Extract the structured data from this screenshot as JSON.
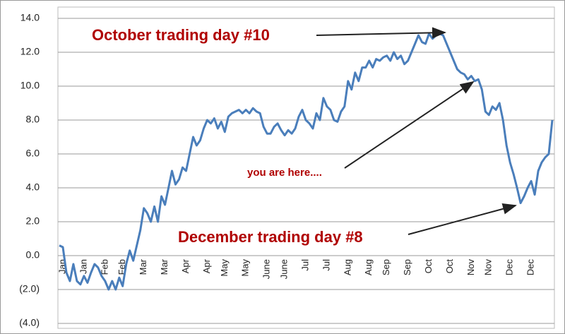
{
  "chart_data": {
    "type": "line",
    "categories": [
      null,
      "Jan",
      null,
      null,
      null,
      null,
      null,
      "Jan",
      null,
      null,
      null,
      null,
      null,
      "Feb",
      null,
      null,
      null,
      null,
      "Feb",
      null,
      null,
      null,
      null,
      null,
      "Mar",
      null,
      null,
      null,
      null,
      null,
      "Mar",
      null,
      null,
      null,
      null,
      null,
      "Apr",
      null,
      null,
      null,
      null,
      null,
      "Apr",
      null,
      null,
      null,
      null,
      "May",
      null,
      null,
      null,
      null,
      null,
      "May",
      null,
      null,
      null,
      null,
      null,
      "June",
      null,
      null,
      null,
      null,
      "June",
      null,
      null,
      null,
      null,
      null,
      "Jul",
      null,
      null,
      null,
      null,
      null,
      "Jul",
      null,
      null,
      null,
      null,
      null,
      "Aug",
      null,
      null,
      null,
      null,
      null,
      "Aug",
      null,
      null,
      null,
      null,
      "Sep",
      null,
      null,
      null,
      null,
      null,
      "Sep",
      null,
      null,
      null,
      null,
      null,
      "Oct",
      null,
      null,
      null,
      null,
      null,
      "Oct",
      null,
      null,
      null,
      null,
      null,
      "Nov",
      null,
      null,
      null,
      null,
      "Nov",
      null,
      null,
      null,
      null,
      null,
      "Dec",
      null,
      null,
      null,
      null,
      null,
      "Dec",
      null,
      null,
      null,
      null,
      null,
      null
    ],
    "values": [
      0.6,
      0.5,
      -1.0,
      -1.5,
      -0.5,
      -1.5,
      -1.7,
      -1.2,
      -1.6,
      -1.0,
      -0.5,
      -0.7,
      -1.2,
      -1.5,
      -2.0,
      -1.5,
      -2.0,
      -1.3,
      -1.8,
      -0.5,
      0.3,
      -0.3,
      0.6,
      1.5,
      2.8,
      2.5,
      2.0,
      2.9,
      2.0,
      3.5,
      3.0,
      4.0,
      5.0,
      4.2,
      4.5,
      5.2,
      5.0,
      6.0,
      7.0,
      6.5,
      6.8,
      7.5,
      8.0,
      7.8,
      8.1,
      7.5,
      7.9,
      7.3,
      8.2,
      8.4,
      8.5,
      8.6,
      8.4,
      8.6,
      8.4,
      8.7,
      8.5,
      8.4,
      7.6,
      7.2,
      7.2,
      7.6,
      7.8,
      7.4,
      7.1,
      7.4,
      7.2,
      7.5,
      8.2,
      8.6,
      8.0,
      7.8,
      7.5,
      8.4,
      8.0,
      9.3,
      8.8,
      8.6,
      8.0,
      7.9,
      8.5,
      8.8,
      10.3,
      9.8,
      10.8,
      10.3,
      11.1,
      11.1,
      11.5,
      11.1,
      11.6,
      11.5,
      11.7,
      11.8,
      11.5,
      12.0,
      11.6,
      11.8,
      11.3,
      11.5,
      12.0,
      12.5,
      13.0,
      12.6,
      12.5,
      13.1,
      12.8,
      13.0,
      13.1,
      13.0,
      12.5,
      12.0,
      11.5,
      11.0,
      10.8,
      10.7,
      10.4,
      10.6,
      10.3,
      10.4,
      9.8,
      8.5,
      8.3,
      8.8,
      8.6,
      9.0,
      8.0,
      6.5,
      5.5,
      4.8,
      4.0,
      3.1,
      3.5,
      4.0,
      4.4,
      3.6,
      5.0,
      5.5,
      5.8,
      6.0,
      8.0
    ],
    "color": "#4a7ebb",
    "ylim": [
      -4,
      14
    ],
    "yticks": [
      {
        "value": -4,
        "label": "(4.0)"
      },
      {
        "value": -2,
        "label": "(2.0)"
      },
      {
        "value": 0,
        "label": "0.0"
      },
      {
        "value": 2,
        "label": "2.0"
      },
      {
        "value": 4,
        "label": "4.0"
      },
      {
        "value": 6,
        "label": "6.0"
      },
      {
        "value": 8,
        "label": "8.0"
      },
      {
        "value": 10,
        "label": "10.0"
      },
      {
        "value": 12,
        "label": "12.0"
      },
      {
        "value": 14,
        "label": "14.0"
      }
    ],
    "grid": true,
    "annotations": [
      {
        "text": "October trading day #10"
      },
      {
        "text": "you are here...."
      },
      {
        "text": "December trading day #8"
      }
    ]
  }
}
